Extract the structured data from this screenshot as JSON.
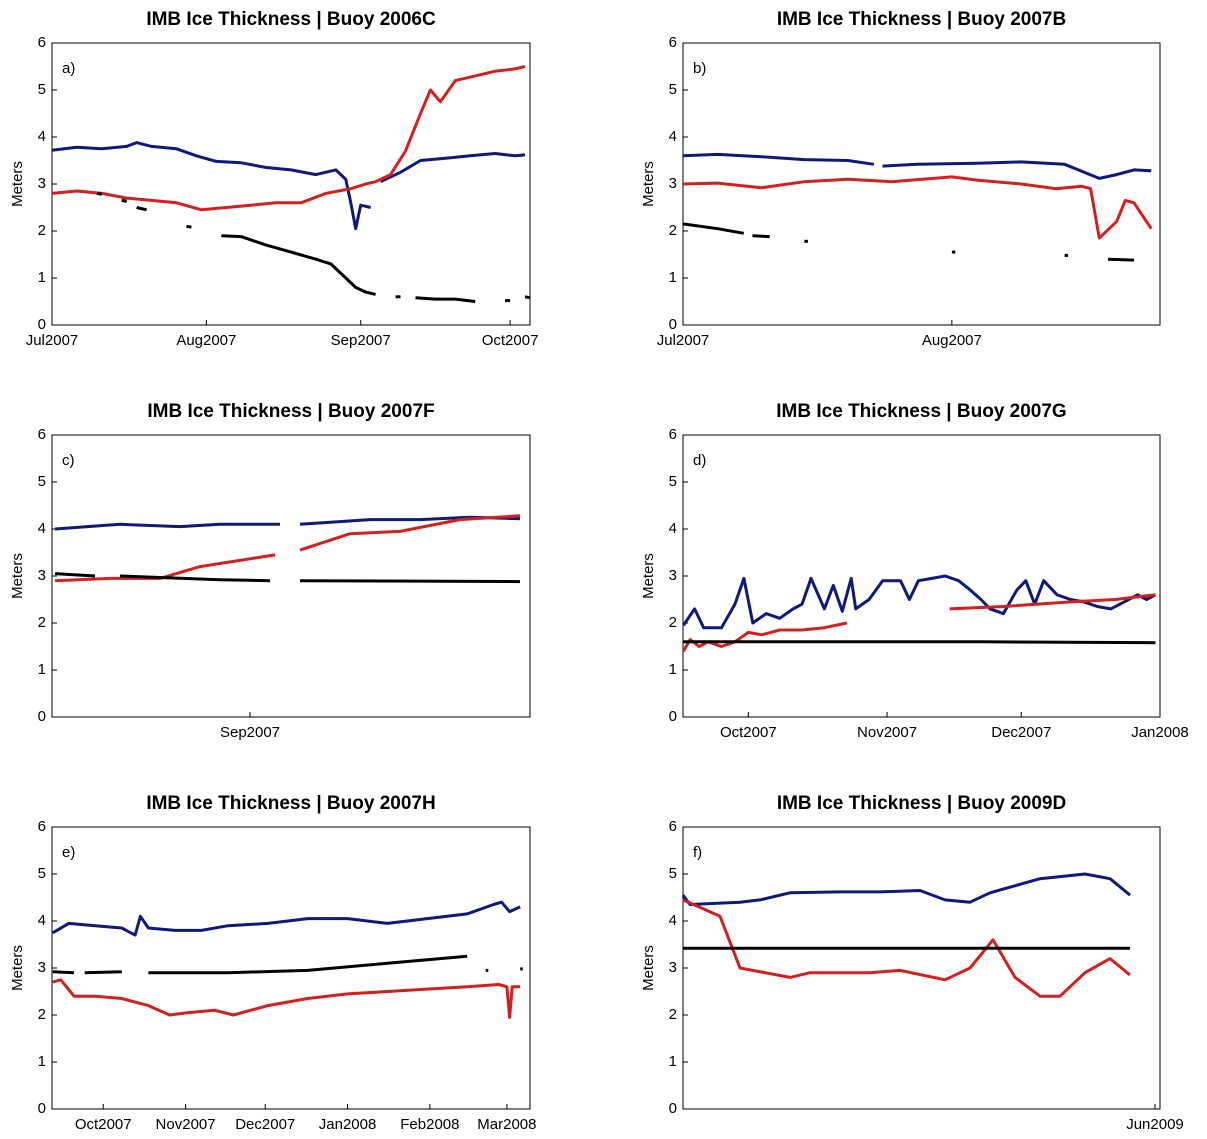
{
  "chart_data": [
    {
      "type": "line",
      "title": "IMB Ice Thickness  |  Buoy 2006C",
      "panel_label": "a)",
      "y_label": "Meters",
      "xlim": [
        181,
        277
      ],
      "ylim": [
        0,
        6
      ],
      "yticks": [
        0,
        1,
        2,
        3,
        4,
        5,
        6
      ],
      "xticks": [
        {
          "value": 181,
          "label": "Jul2007"
        },
        {
          "value": 212,
          "label": "Aug2007"
        },
        {
          "value": 243,
          "label": "Sep2007"
        },
        {
          "value": 273,
          "label": "Oct2007"
        }
      ],
      "series": [
        {
          "color": "#0d1a7a",
          "x": [
            181,
            186,
            191,
            196,
            198,
            201,
            206,
            210,
            214,
            219,
            224,
            229,
            234,
            238,
            240,
            241,
            242,
            243,
            245,
            null,
            247,
            251,
            255,
            260,
            265,
            270,
            274,
            276
          ],
          "values": [
            3.72,
            3.78,
            3.75,
            3.8,
            3.88,
            3.8,
            3.75,
            3.6,
            3.48,
            3.45,
            3.35,
            3.3,
            3.2,
            3.3,
            3.1,
            2.6,
            2.05,
            2.55,
            2.5,
            null,
            3.05,
            3.25,
            3.5,
            3.55,
            3.6,
            3.65,
            3.6,
            3.62
          ]
        },
        {
          "color": "#d41f1f",
          "x": [
            181,
            186,
            191,
            196,
            201,
            206,
            211,
            216,
            221,
            226,
            231,
            236,
            241,
            244,
            246,
            249,
            252,
            255,
            257,
            259,
            262,
            266,
            270,
            274,
            276
          ],
          "values": [
            2.8,
            2.85,
            2.8,
            2.7,
            2.65,
            2.6,
            2.45,
            2.5,
            2.55,
            2.6,
            2.6,
            2.8,
            2.9,
            3.0,
            3.05,
            3.2,
            3.7,
            4.5,
            5.0,
            4.75,
            5.2,
            5.3,
            5.4,
            5.45,
            5.5
          ]
        },
        {
          "color": "#000000",
          "x": [
            190,
            191,
            null,
            195,
            196,
            null,
            198,
            200,
            null,
            208,
            209,
            null,
            215,
            219,
            224,
            229,
            234,
            237,
            240,
            242,
            244,
            246,
            null,
            250,
            251,
            null,
            254,
            258,
            262,
            266,
            null,
            272,
            273,
            null,
            276,
            277
          ],
          "values": [
            2.8,
            2.78,
            null,
            2.65,
            2.63,
            null,
            2.5,
            2.45,
            null,
            2.1,
            2.08,
            null,
            1.9,
            1.88,
            1.7,
            1.55,
            1.4,
            1.3,
            1.0,
            0.8,
            0.7,
            0.65,
            null,
            0.6,
            0.6,
            null,
            0.58,
            0.55,
            0.55,
            0.5,
            null,
            0.52,
            0.52,
            null,
            0.6,
            0.58
          ]
        }
      ]
    },
    {
      "type": "line",
      "title": "IMB Ice Thickness  |  Buoy 2007B",
      "panel_label": "b)",
      "y_label": "Meters",
      "xlim": [
        181,
        236
      ],
      "ylim": [
        0,
        6
      ],
      "yticks": [
        0,
        1,
        2,
        3,
        4,
        5,
        6
      ],
      "xticks": [
        {
          "value": 181,
          "label": "Jul2007"
        },
        {
          "value": 212,
          "label": "Aug2007"
        }
      ],
      "series": [
        {
          "color": "#0d1a7a",
          "x": [
            181,
            185,
            190,
            195,
            200,
            203,
            null,
            204,
            208,
            215,
            220,
            225,
            229,
            231,
            233,
            235
          ],
          "values": [
            3.6,
            3.63,
            3.58,
            3.52,
            3.5,
            3.42,
            null,
            3.38,
            3.42,
            3.44,
            3.47,
            3.42,
            3.12,
            3.2,
            3.3,
            3.28
          ]
        },
        {
          "color": "#d41f1f",
          "x": [
            181,
            185,
            190,
            195,
            200,
            205,
            212,
            215,
            220,
            224,
            227,
            228,
            229,
            231,
            232,
            233,
            235
          ],
          "values": [
            3.0,
            3.02,
            2.92,
            3.05,
            3.1,
            3.05,
            3.15,
            3.08,
            3.0,
            2.9,
            2.95,
            2.9,
            1.85,
            2.2,
            2.65,
            2.6,
            2.05
          ]
        },
        {
          "color": "#000000",
          "x": [
            181,
            185,
            188,
            null,
            189,
            191,
            null,
            195,
            195.4,
            null,
            212,
            212.4,
            null,
            225,
            225.4,
            null,
            230,
            233
          ],
          "values": [
            2.15,
            2.05,
            1.95,
            null,
            1.9,
            1.88,
            null,
            1.78,
            1.78,
            null,
            1.55,
            1.55,
            null,
            1.48,
            1.48,
            null,
            1.4,
            1.38
          ]
        }
      ]
    },
    {
      "type": "line",
      "title": "IMB Ice Thickness  |  Buoy 2007F",
      "panel_label": "c)",
      "y_label": "Meters",
      "xlim": [
        223.2,
        271
      ],
      "ylim": [
        0,
        6
      ],
      "yticks": [
        0,
        1,
        2,
        3,
        4,
        5,
        6
      ],
      "xticks": [
        {
          "value": 243,
          "label": "Sep2007"
        }
      ],
      "series": [
        {
          "color": "#0d1a7a",
          "x": [
            223.5,
            230,
            236,
            240,
            246,
            null,
            248,
            255,
            260,
            265,
            270
          ],
          "values": [
            4.0,
            4.1,
            4.05,
            4.1,
            4.1,
            null,
            4.1,
            4.2,
            4.2,
            4.25,
            4.22
          ]
        },
        {
          "color": "#d41f1f",
          "x": [
            223.5,
            229,
            234,
            238,
            245.5,
            null,
            248,
            253,
            258,
            264,
            270
          ],
          "values": [
            2.9,
            2.95,
            2.95,
            3.2,
            3.45,
            null,
            3.55,
            3.9,
            3.95,
            4.2,
            4.28
          ]
        },
        {
          "color": "#000000",
          "x": [
            223.5,
            227.5,
            null,
            230,
            240,
            245,
            null,
            248,
            270
          ],
          "values": [
            3.05,
            3.0,
            null,
            3.0,
            2.92,
            2.9,
            null,
            2.9,
            2.88
          ]
        }
      ]
    },
    {
      "type": "line",
      "title": "IMB Ice Thickness  |  Buoy 2007G",
      "panel_label": "d)",
      "y_label": "Meters",
      "xlim": [
        258.4,
        365
      ],
      "ylim": [
        0,
        6
      ],
      "yticks": [
        0,
        1,
        2,
        3,
        4,
        5,
        6
      ],
      "xticks": [
        {
          "value": 273,
          "label": "Oct2007"
        },
        {
          "value": 304,
          "label": "Nov2007"
        },
        {
          "value": 334,
          "label": "Dec2007"
        },
        {
          "value": 365,
          "label": "Jan2008"
        }
      ],
      "series": [
        {
          "color": "#0d1a7a",
          "x": [
            258.5,
            261,
            263,
            267,
            270,
            272,
            274,
            277,
            280,
            283,
            285,
            287,
            290,
            292,
            294,
            296,
            297,
            300,
            303,
            307,
            309,
            311,
            314,
            317,
            320,
            322,
            325,
            327,
            330,
            333,
            335,
            337,
            339,
            342,
            345,
            348,
            351,
            354,
            357,
            360,
            362,
            364
          ],
          "values": [
            1.95,
            2.3,
            1.9,
            1.9,
            2.4,
            2.95,
            2.0,
            2.2,
            2.1,
            2.3,
            2.4,
            2.95,
            2.3,
            2.8,
            2.25,
            2.95,
            2.3,
            2.5,
            2.9,
            2.9,
            2.5,
            2.9,
            2.95,
            3.0,
            2.9,
            2.75,
            2.5,
            2.3,
            2.2,
            2.7,
            2.9,
            2.4,
            2.9,
            2.6,
            2.5,
            2.45,
            2.35,
            2.3,
            2.45,
            2.6,
            2.5,
            2.6
          ]
        },
        {
          "color": "#d41f1f",
          "x": [
            258.5,
            260,
            262,
            264,
            267,
            270,
            273,
            276,
            280,
            285,
            290,
            295,
            null,
            318,
            330,
            345,
            355,
            364
          ],
          "values": [
            1.4,
            1.65,
            1.5,
            1.6,
            1.5,
            1.6,
            1.8,
            1.75,
            1.85,
            1.85,
            1.9,
            2.0,
            null,
            2.3,
            2.35,
            2.45,
            2.5,
            2.6
          ]
        },
        {
          "color": "#000000",
          "x": [
            258.5,
            300,
            325,
            364
          ],
          "values": [
            1.6,
            1.6,
            1.6,
            1.58
          ]
        }
      ]
    },
    {
      "type": "line",
      "title": "IMB Ice Thickness  |  Buoy 2007H",
      "panel_label": "e)",
      "y_label": "Meters",
      "xlim": [
        253.7,
        433.7
      ],
      "ylim": [
        0,
        6
      ],
      "yticks": [
        0,
        1,
        2,
        3,
        4,
        5,
        6
      ],
      "xticks": [
        {
          "value": 273,
          "label": "Oct2007"
        },
        {
          "value": 304,
          "label": "Nov2007"
        },
        {
          "value": 334,
          "label": "Dec2007"
        },
        {
          "value": 365,
          "label": "Jan2008"
        },
        {
          "value": 396,
          "label": "Feb2008"
        },
        {
          "value": 425,
          "label": "Mar2008"
        }
      ],
      "series": [
        {
          "color": "#0d1a7a",
          "x": [
            254,
            260,
            270,
            280,
            285,
            287,
            290,
            300,
            310,
            320,
            335,
            350,
            365,
            380,
            395,
            410,
            420,
            423,
            426,
            430
          ],
          "values": [
            3.75,
            3.95,
            3.9,
            3.85,
            3.7,
            4.1,
            3.85,
            3.8,
            3.8,
            3.9,
            3.95,
            4.05,
            4.05,
            3.95,
            4.05,
            4.15,
            4.35,
            4.4,
            4.2,
            4.3
          ]
        },
        {
          "color": "#d41f1f",
          "x": [
            254,
            257,
            262,
            270,
            280,
            290,
            298,
            305,
            315,
            322,
            335,
            350,
            365,
            380,
            395,
            410,
            422,
            425,
            426,
            427,
            430
          ],
          "values": [
            2.7,
            2.75,
            2.4,
            2.4,
            2.35,
            2.2,
            2.0,
            2.05,
            2.1,
            2.0,
            2.2,
            2.35,
            2.45,
            2.5,
            2.55,
            2.6,
            2.65,
            2.6,
            1.95,
            2.6,
            2.6
          ]
        },
        {
          "color": "#000000",
          "x": [
            254,
            262,
            null,
            266,
            280,
            null,
            290,
            320,
            350,
            380,
            410,
            null,
            417,
            418,
            null,
            430,
            431
          ],
          "values": [
            2.92,
            2.9,
            null,
            2.9,
            2.92,
            null,
            2.9,
            2.9,
            2.95,
            3.1,
            3.25,
            null,
            2.95,
            2.95,
            null,
            2.98,
            2.98
          ]
        }
      ]
    },
    {
      "type": "line",
      "title": "IMB Ice Thickness  |  Buoy 2009D",
      "panel_label": "f)",
      "y_label": "Meters",
      "xlim": [
        410,
        887
      ],
      "ylim": [
        0,
        6
      ],
      "yticks": [
        0,
        1,
        2,
        3,
        4,
        5,
        6
      ],
      "xticks": [
        {
          "value": 882,
          "label": "Jun2009"
        }
      ],
      "series": [
        {
          "color": "#0d1a7a",
          "x": [
            410,
            417,
            467,
            487,
            517,
            567,
            607,
            647,
            672,
            697,
            717,
            767,
            812,
            837,
            857
          ],
          "values": [
            4.55,
            4.35,
            4.4,
            4.45,
            4.6,
            4.62,
            4.62,
            4.65,
            4.45,
            4.4,
            4.6,
            4.9,
            5.0,
            4.9,
            4.55
          ]
        },
        {
          "color": "#d41f1f",
          "x": [
            410,
            447,
            467,
            517,
            537,
            597,
            627,
            672,
            697,
            720,
            742,
            767,
            787,
            812,
            837,
            857
          ],
          "values": [
            4.45,
            4.1,
            3.0,
            2.8,
            2.9,
            2.9,
            2.95,
            2.75,
            3.0,
            3.6,
            2.8,
            2.4,
            2.4,
            2.9,
            3.2,
            2.85
          ]
        },
        {
          "color": "#000000",
          "x": [
            410,
            680,
            857
          ],
          "values": [
            3.42,
            3.42,
            3.42
          ]
        }
      ]
    }
  ]
}
